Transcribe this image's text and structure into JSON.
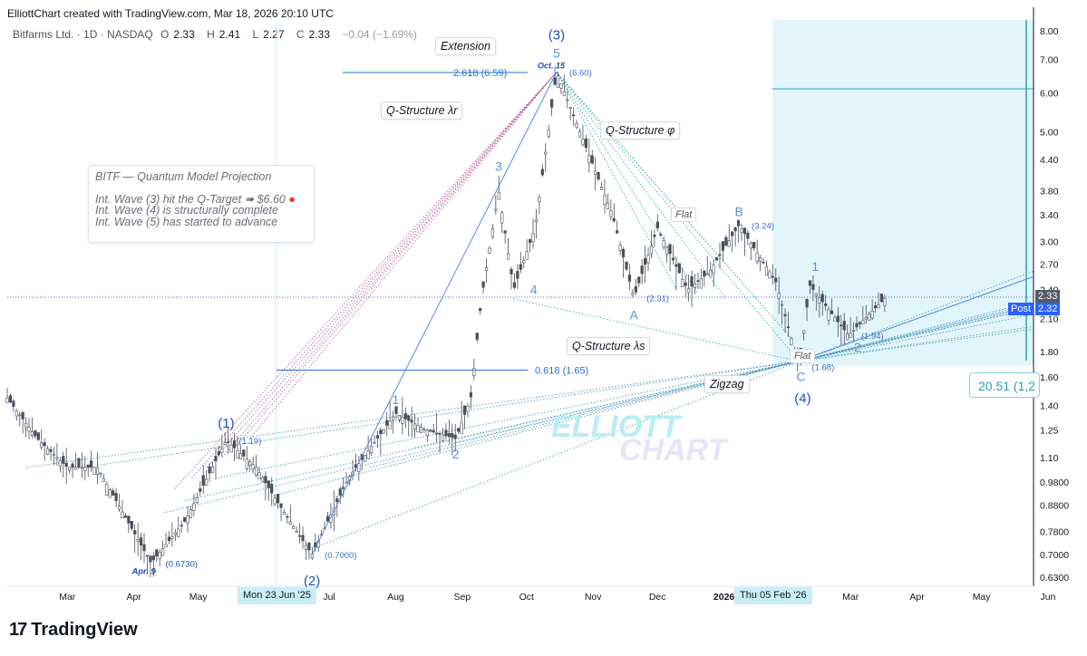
{
  "header": {
    "credit": "ElliottChart created with TradingView.com, Mar 18, 2026 20:10 UTC",
    "symbol": "Bitfarms Ltd. · 1D · NASDAQ",
    "open_label": "O",
    "open": "2.33",
    "high_label": "H",
    "high": "2.41",
    "low_label": "L",
    "low": "2.27",
    "close_label": "C",
    "close": "2.33",
    "change": "−0.04 (−1.69%)"
  },
  "note": {
    "title": "BITF — Quantum Model Projection",
    "line1": "Int. Wave (3) hit the Q-Target ➠ $6.60",
    "line2": "Int. Wave (4) is structurally complete",
    "line3": "Int. Wave (5) has started to advance"
  },
  "tags": {
    "extension": "Extension",
    "q_lambda_r": "Q-Structure λr",
    "q_phi": "Q-Structure φ",
    "q_lambda_s": "Q-Structure λs",
    "flat_b": "Flat",
    "flat_2": "Flat",
    "zigzag": "Zigzag"
  },
  "price_boxes": {
    "last": "2.33",
    "post_label": "Post",
    "post": "2.32",
    "measure": "20.51 (1,2"
  },
  "date_tags": {
    "left": "Mon 23 Jun '25",
    "right": "Thu 05 Feb '26"
  },
  "footer": {
    "brand": "TradingView"
  },
  "colors": {
    "wave": "#2962ff",
    "fib": "#2196f3",
    "projection_zone": "#e1f5fb",
    "dotted_pink": "#c2185b",
    "dotted_teal": "#26a69a"
  },
  "chart_data": {
    "type": "candlestick",
    "title": "Bitfarms Ltd. · 1D · NASDAQ",
    "y_scale": "log",
    "ylim": [
      0.6,
      8.2
    ],
    "y_ticks": [
      "8.00",
      "7.00",
      "6.00",
      "5.00",
      "4.40",
      "3.80",
      "3.40",
      "3.00",
      "2.70",
      "2.40",
      "2.10",
      "1.80",
      "1.60",
      "1.40",
      "1.25",
      "1.10",
      "0.9800",
      "0.8800",
      "0.7800",
      "0.7000",
      "0.6300"
    ],
    "x_ticks": [
      "Mar",
      "Apr",
      "May",
      "Jun",
      "Jul",
      "Aug",
      "Sep",
      "Oct",
      "Nov",
      "Dec",
      "2026",
      "Feb",
      "Mar",
      "Apr",
      "May",
      "Jun"
    ],
    "fib_levels": [
      {
        "label": "2.618 (6.59)",
        "value": 6.59
      },
      {
        "label": "0.618 (1.65)",
        "value": 1.65
      }
    ],
    "wave_labels": [
      {
        "label": "(1)",
        "date": "2025-05-14",
        "price": 1.19,
        "price_label": "(1.19)"
      },
      {
        "label": "(2)",
        "date": "2025-06-23",
        "price": 0.7,
        "price_label": "(0.7000)"
      },
      {
        "label": "(3)",
        "date": "2025-10-15",
        "price": 6.6,
        "price_label": "(6.60)"
      },
      {
        "label": "(4)",
        "date": "2026-02-05",
        "price": 1.68,
        "price_label": "(1.68)"
      },
      {
        "label": "1",
        "date": "2025-08-01",
        "price": 1.35
      },
      {
        "label": "2",
        "date": "2025-08-29",
        "price": 1.2
      },
      {
        "label": "3",
        "date": "2025-09-18",
        "price": 3.8
      },
      {
        "label": "4",
        "date": "2025-09-25",
        "price": 2.35
      },
      {
        "label": "5",
        "date": "2025-10-15",
        "price": 6.6
      },
      {
        "label": "A",
        "date": "2025-11-20",
        "price": 2.31,
        "price_label": "(2.31)"
      },
      {
        "label": "B",
        "date": "2026-01-08",
        "price": 3.24,
        "price_label": "(3.24)"
      },
      {
        "label": "C",
        "date": "2026-02-05",
        "price": 1.68
      },
      {
        "label": "1",
        "date": "2026-02-10",
        "price": 2.45
      },
      {
        "label": "2",
        "date": "2026-02-28",
        "price": 1.94,
        "price_label": "(1.94)"
      }
    ],
    "start_low": {
      "label": "Apr. 9",
      "price_label": "(0.6730)",
      "price": 0.673
    },
    "peak_date_label": "Oct. 15",
    "last_price": 2.33,
    "post_price": 2.32,
    "watermark": [
      "ELLIOTT",
      "CHART"
    ]
  }
}
